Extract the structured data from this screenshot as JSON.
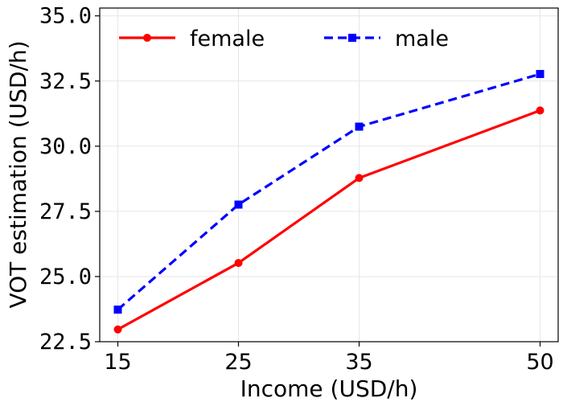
{
  "chart_data": {
    "type": "line",
    "x": [
      15,
      25,
      35,
      50
    ],
    "xticks": [
      "15",
      "25",
      "35",
      "50"
    ],
    "xlabel": "Income (USD/h)",
    "ylabel": "VOT estimation (USD/h)",
    "xlim": [
      13.5,
      51.5
    ],
    "ylim": [
      22.5,
      35.3
    ],
    "yticks": [
      22.5,
      25.0,
      27.5,
      30.0,
      32.5,
      35.0
    ],
    "ytick_labels": [
      "22.5",
      "25.0",
      "27.5",
      "30.0",
      "32.5",
      "35.0"
    ],
    "grid": true,
    "legend_position": "top",
    "series": [
      {
        "name": "female",
        "values": [
          22.97,
          25.52,
          28.78,
          31.37
        ],
        "color": "#ff0000",
        "line_style": "solid",
        "marker": "circle"
      },
      {
        "name": "male",
        "values": [
          23.73,
          27.76,
          30.75,
          32.77
        ],
        "color": "#0000ff",
        "line_style": "dashed",
        "marker": "square"
      }
    ]
  }
}
